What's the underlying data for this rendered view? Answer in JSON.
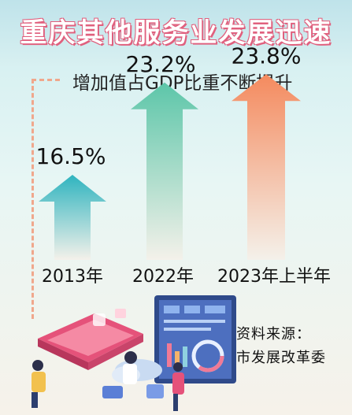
{
  "title": "重庆其他服务业发展迅速",
  "subtitle": "增加值占GDP比重不断提升",
  "chart_data": {
    "type": "bar",
    "categories": [
      "2013年",
      "2022年",
      "2023年上半年"
    ],
    "values": [
      16.5,
      23.2,
      23.8
    ],
    "value_labels": [
      "16.5%",
      "23.2%",
      "23.8%"
    ],
    "title": "增加值占GDP比重不断提升",
    "xlabel": "",
    "ylabel": "",
    "unit": "%"
  },
  "source": {
    "line1": "资料来源：",
    "line2": "市发展改革委"
  },
  "colors": {
    "title_fill": "#ffffff",
    "title_outline": "#e0607e",
    "arrow_top_1": "#2fb4bf",
    "arrow_top_2": "#5cc6a9",
    "arrow_top_3": "#f48a5e",
    "arrow_bottom": "#f4f1ea",
    "dashed_frame": "#f0a78c"
  }
}
